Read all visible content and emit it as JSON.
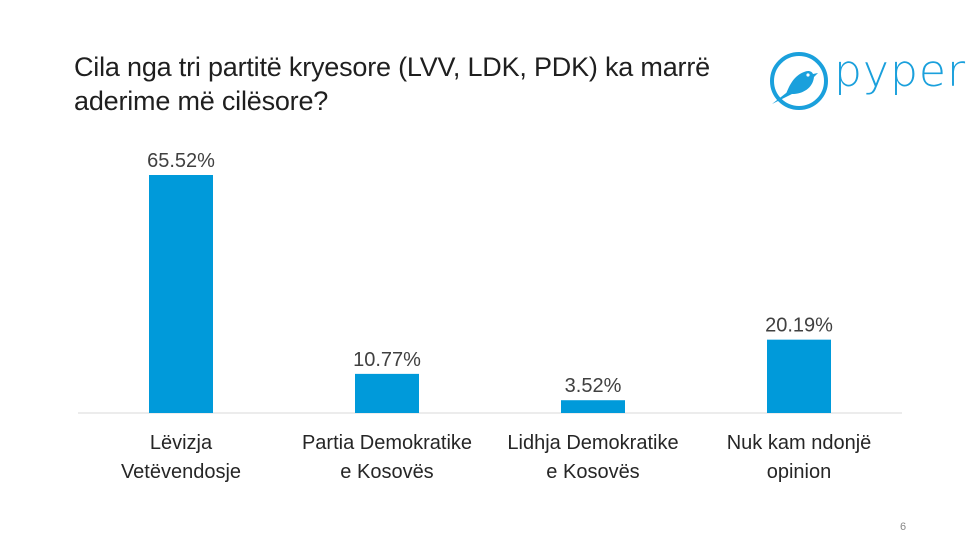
{
  "title": "Cila nga tri partitë kryesore (LVV, LDK, PDK) ka marrë aderime më cilësore?",
  "logo": {
    "text": "pyper",
    "icon": "bird-icon"
  },
  "page_number": "6",
  "colors": {
    "bar": "#009ADA",
    "axis": "#D9D9D9",
    "text": "#404040"
  },
  "chart_data": {
    "type": "bar",
    "title": "Cila nga tri partitë kryesore (LVV, LDK, PDK) ka marrë aderime më cilësore?",
    "categories": [
      [
        "Lëvizja",
        "Vetëvendosje"
      ],
      [
        "Partia Demokratike",
        "e Kosovës"
      ],
      [
        "Lidhja Demokratike",
        "e Kosovës"
      ],
      [
        "Nuk kam ndonjë",
        "opinion"
      ]
    ],
    "values": [
      65.52,
      10.77,
      3.52,
      20.19
    ],
    "data_labels": [
      "65.52%",
      "10.77%",
      "3.52%",
      "20.19%"
    ],
    "xlabel": "",
    "ylabel": "",
    "ylim": [
      0,
      65.52
    ],
    "grid": false,
    "legend": "none"
  }
}
